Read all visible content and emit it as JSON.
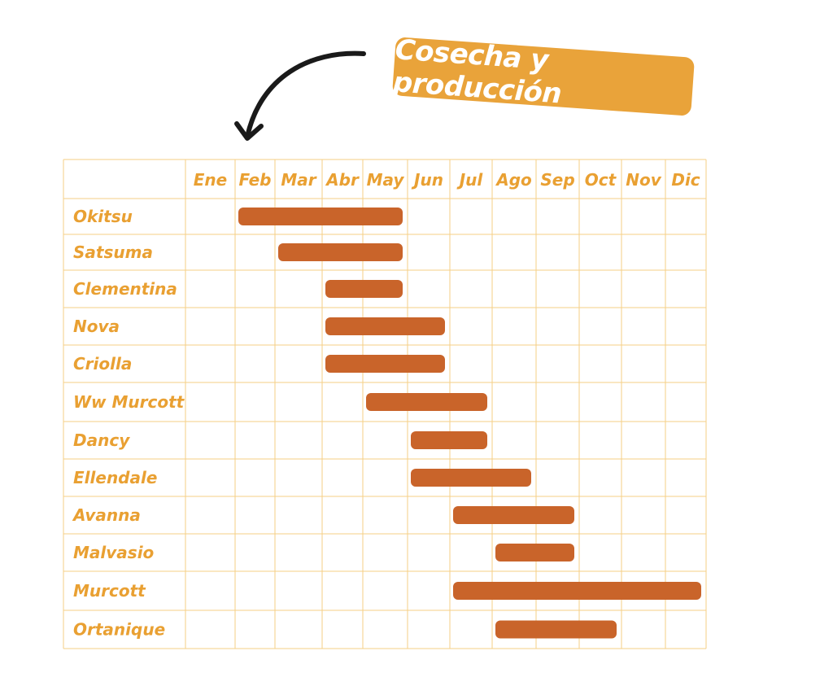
{
  "title": "Cosecha y producción",
  "colors": {
    "badge": "#E9A33A",
    "badge_text": "#ffffff",
    "grid": "#F5CF86",
    "label": "#E9A032",
    "bar": "#C9642A",
    "arrow": "#1a1a1a"
  },
  "icons": {
    "pointer": "curved-arrow-icon"
  },
  "chart_data": {
    "type": "gantt",
    "months": [
      "Ene",
      "Feb",
      "Mar",
      "Abr",
      "May",
      "Jun",
      "Jul",
      "Ago",
      "Sep",
      "Oct",
      "Nov",
      "Dic"
    ],
    "rows": [
      {
        "name": "Okitsu",
        "start": "Feb",
        "end": "May"
      },
      {
        "name": "Satsuma",
        "start": "Mar",
        "end": "May"
      },
      {
        "name": "Clementina",
        "start": "Abr",
        "end": "May"
      },
      {
        "name": "Nova",
        "start": "Abr",
        "end": "Jun"
      },
      {
        "name": "Criolla",
        "start": "Abr",
        "end": "Jun"
      },
      {
        "name": "Ww Murcott",
        "start": "May",
        "end": "Jul"
      },
      {
        "name": "Dancy",
        "start": "Jun",
        "end": "Jul"
      },
      {
        "name": "Ellendale",
        "start": "Jun",
        "end": "Ago"
      },
      {
        "name": "Avanna",
        "start": "Jul",
        "end": "Sep"
      },
      {
        "name": "Malvasio",
        "start": "Ago",
        "end": "Sep"
      },
      {
        "name": "Murcott",
        "start": "Jul",
        "end": "Dic"
      },
      {
        "name": "Ortanique",
        "start": "Ago",
        "end": "Oct"
      }
    ],
    "grid": true
  }
}
